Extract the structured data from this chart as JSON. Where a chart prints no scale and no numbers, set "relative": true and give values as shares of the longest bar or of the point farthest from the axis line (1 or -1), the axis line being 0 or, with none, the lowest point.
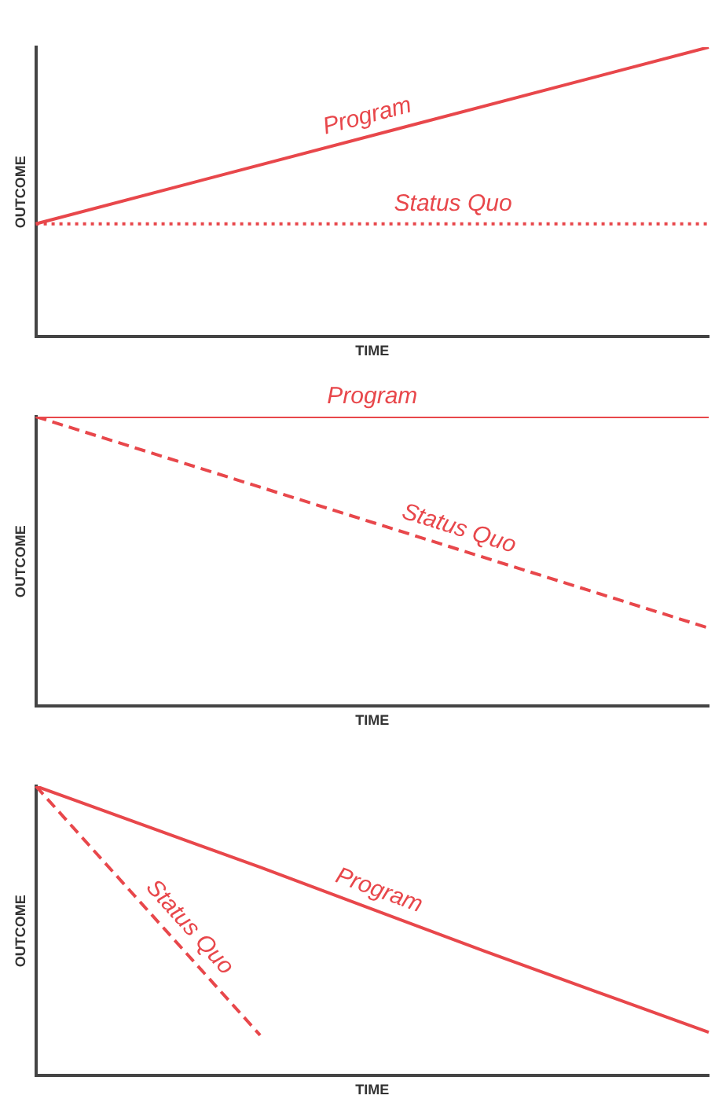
{
  "chart_data": [
    {
      "type": "line",
      "xlabel": "TIME",
      "ylabel": "OUTCOME",
      "relative": true,
      "categories": [
        null,
        null
      ],
      "tick_labels": false,
      "series": [
        {
          "name": "Program",
          "color": "#e8474b",
          "values": [
            0.39,
            1
          ],
          "line_style": "solid"
        },
        {
          "name": "Status Quo",
          "color": "#e8474b",
          "values": [
            0.39,
            0.39
          ],
          "line_style": "dotted"
        }
      ]
    },
    {
      "type": "line",
      "xlabel": "TIME",
      "ylabel": "OUTCOME",
      "relative": true,
      "categories": [
        null,
        null
      ],
      "tick_labels": false,
      "series": [
        {
          "name": "Program",
          "color": "#e8474b",
          "values": [
            1,
            1
          ],
          "line_style": "solid"
        },
        {
          "name": "Status Quo",
          "color": "#e8474b",
          "values": [
            1,
            0.27
          ],
          "line_style": "dashed"
        }
      ]
    },
    {
      "type": "line",
      "xlabel": "TIME",
      "ylabel": "OUTCOME",
      "relative": true,
      "categories": [
        null,
        null,
        null,
        null
      ],
      "tick_labels": false,
      "series": [
        {
          "name": "Program",
          "color": "#e8474b",
          "values": [
            1,
            0.72,
            0.43,
            0.15
          ],
          "line_style": "solid"
        },
        {
          "name": "Status Quo",
          "color": "#e8474b",
          "values": [
            1,
            0.14,
            null,
            null
          ],
          "line_style": "dashed"
        }
      ]
    }
  ]
}
